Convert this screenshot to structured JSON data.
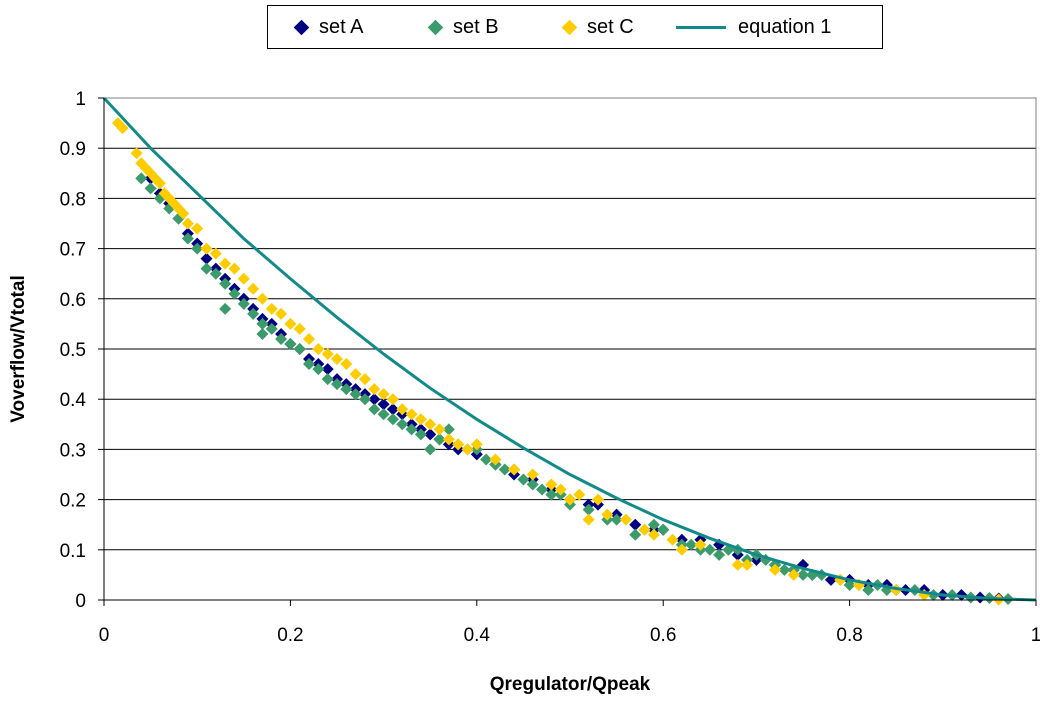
{
  "chart_data": {
    "type": "scatter",
    "title": "",
    "xlabel": "Qregulator/Qpeak",
    "ylabel": "Voverflow/Vtotal",
    "xlim": [
      0,
      1
    ],
    "ylim": [
      0,
      1
    ],
    "x_ticks": [
      "0",
      "0.2",
      "0.4",
      "0.6",
      "0.8",
      "1"
    ],
    "y_ticks": [
      "0",
      "0.1",
      "0.2",
      "0.3",
      "0.4",
      "0.5",
      "0.6",
      "0.7",
      "0.8",
      "0.9",
      "1"
    ],
    "grid": "horizontal",
    "legend_position": "top",
    "series": [
      {
        "name": "set A",
        "kind": "scatter",
        "marker": "diamond",
        "color": "#000080",
        "points": [
          [
            0.05,
            0.84
          ],
          [
            0.06,
            0.81
          ],
          [
            0.07,
            0.79
          ],
          [
            0.08,
            0.76
          ],
          [
            0.09,
            0.73
          ],
          [
            0.1,
            0.71
          ],
          [
            0.11,
            0.68
          ],
          [
            0.12,
            0.66
          ],
          [
            0.13,
            0.64
          ],
          [
            0.14,
            0.62
          ],
          [
            0.15,
            0.6
          ],
          [
            0.16,
            0.58
          ],
          [
            0.17,
            0.56
          ],
          [
            0.18,
            0.55
          ],
          [
            0.19,
            0.53
          ],
          [
            0.2,
            0.51
          ],
          [
            0.21,
            0.5
          ],
          [
            0.22,
            0.48
          ],
          [
            0.23,
            0.47
          ],
          [
            0.24,
            0.46
          ],
          [
            0.25,
            0.44
          ],
          [
            0.26,
            0.43
          ],
          [
            0.27,
            0.42
          ],
          [
            0.28,
            0.41
          ],
          [
            0.29,
            0.4
          ],
          [
            0.3,
            0.39
          ],
          [
            0.31,
            0.38
          ],
          [
            0.32,
            0.37
          ],
          [
            0.33,
            0.35
          ],
          [
            0.34,
            0.34
          ],
          [
            0.35,
            0.33
          ],
          [
            0.36,
            0.32
          ],
          [
            0.37,
            0.31
          ],
          [
            0.38,
            0.3
          ],
          [
            0.4,
            0.29
          ],
          [
            0.42,
            0.27
          ],
          [
            0.44,
            0.25
          ],
          [
            0.46,
            0.24
          ],
          [
            0.48,
            0.22
          ],
          [
            0.5,
            0.2
          ],
          [
            0.52,
            0.19
          ],
          [
            0.53,
            0.19
          ],
          [
            0.55,
            0.17
          ],
          [
            0.57,
            0.15
          ],
          [
            0.59,
            0.14
          ],
          [
            0.6,
            0.14
          ],
          [
            0.62,
            0.12
          ],
          [
            0.64,
            0.12
          ],
          [
            0.66,
            0.11
          ],
          [
            0.68,
            0.09
          ],
          [
            0.7,
            0.08
          ],
          [
            0.72,
            0.07
          ],
          [
            0.74,
            0.06
          ],
          [
            0.75,
            0.07
          ],
          [
            0.76,
            0.05
          ],
          [
            0.78,
            0.04
          ],
          [
            0.8,
            0.04
          ],
          [
            0.82,
            0.03
          ],
          [
            0.84,
            0.03
          ],
          [
            0.86,
            0.02
          ],
          [
            0.88,
            0.02
          ],
          [
            0.9,
            0.01
          ],
          [
            0.92,
            0.01
          ],
          [
            0.94,
            0.005
          ],
          [
            0.96,
            0.003
          ]
        ]
      },
      {
        "name": "set B",
        "kind": "scatter",
        "marker": "diamond",
        "color": "#3C9B6B",
        "points": [
          [
            0.04,
            0.84
          ],
          [
            0.05,
            0.82
          ],
          [
            0.06,
            0.8
          ],
          [
            0.07,
            0.78
          ],
          [
            0.08,
            0.76
          ],
          [
            0.09,
            0.72
          ],
          [
            0.1,
            0.7
          ],
          [
            0.11,
            0.66
          ],
          [
            0.12,
            0.65
          ],
          [
            0.13,
            0.58
          ],
          [
            0.13,
            0.63
          ],
          [
            0.14,
            0.61
          ],
          [
            0.15,
            0.59
          ],
          [
            0.16,
            0.57
          ],
          [
            0.17,
            0.55
          ],
          [
            0.17,
            0.53
          ],
          [
            0.18,
            0.54
          ],
          [
            0.19,
            0.52
          ],
          [
            0.2,
            0.51
          ],
          [
            0.21,
            0.5
          ],
          [
            0.22,
            0.47
          ],
          [
            0.23,
            0.46
          ],
          [
            0.24,
            0.44
          ],
          [
            0.25,
            0.43
          ],
          [
            0.26,
            0.42
          ],
          [
            0.27,
            0.41
          ],
          [
            0.28,
            0.4
          ],
          [
            0.29,
            0.38
          ],
          [
            0.3,
            0.37
          ],
          [
            0.31,
            0.36
          ],
          [
            0.32,
            0.35
          ],
          [
            0.33,
            0.34
          ],
          [
            0.34,
            0.33
          ],
          [
            0.35,
            0.3
          ],
          [
            0.36,
            0.32
          ],
          [
            0.37,
            0.34
          ],
          [
            0.38,
            0.31
          ],
          [
            0.39,
            0.3
          ],
          [
            0.4,
            0.3
          ],
          [
            0.41,
            0.28
          ],
          [
            0.42,
            0.27
          ],
          [
            0.43,
            0.26
          ],
          [
            0.44,
            0.26
          ],
          [
            0.45,
            0.24
          ],
          [
            0.46,
            0.23
          ],
          [
            0.47,
            0.22
          ],
          [
            0.48,
            0.21
          ],
          [
            0.49,
            0.21
          ],
          [
            0.5,
            0.19
          ],
          [
            0.52,
            0.18
          ],
          [
            0.54,
            0.16
          ],
          [
            0.55,
            0.16
          ],
          [
            0.57,
            0.13
          ],
          [
            0.58,
            0.14
          ],
          [
            0.59,
            0.15
          ],
          [
            0.6,
            0.14
          ],
          [
            0.62,
            0.11
          ],
          [
            0.63,
            0.11
          ],
          [
            0.64,
            0.1
          ],
          [
            0.65,
            0.1
          ],
          [
            0.66,
            0.09
          ],
          [
            0.67,
            0.1
          ],
          [
            0.68,
            0.1
          ],
          [
            0.69,
            0.08
          ],
          [
            0.7,
            0.09
          ],
          [
            0.71,
            0.08
          ],
          [
            0.72,
            0.07
          ],
          [
            0.73,
            0.06
          ],
          [
            0.74,
            0.06
          ],
          [
            0.75,
            0.05
          ],
          [
            0.76,
            0.05
          ],
          [
            0.77,
            0.05
          ],
          [
            0.79,
            0.04
          ],
          [
            0.8,
            0.03
          ],
          [
            0.81,
            0.03
          ],
          [
            0.82,
            0.02
          ],
          [
            0.83,
            0.03
          ],
          [
            0.84,
            0.02
          ],
          [
            0.85,
            0.02
          ],
          [
            0.87,
            0.02
          ],
          [
            0.89,
            0.01
          ],
          [
            0.91,
            0.01
          ],
          [
            0.93,
            0.005
          ],
          [
            0.95,
            0.004
          ],
          [
            0.97,
            0.002
          ]
        ]
      },
      {
        "name": "set C",
        "kind": "scatter",
        "marker": "diamond",
        "color": "#FFCC00",
        "points": [
          [
            0.015,
            0.95
          ],
          [
            0.02,
            0.94
          ],
          [
            0.035,
            0.89
          ],
          [
            0.04,
            0.87
          ],
          [
            0.045,
            0.86
          ],
          [
            0.05,
            0.85
          ],
          [
            0.055,
            0.84
          ],
          [
            0.06,
            0.83
          ],
          [
            0.065,
            0.81
          ],
          [
            0.07,
            0.8
          ],
          [
            0.075,
            0.79
          ],
          [
            0.08,
            0.78
          ],
          [
            0.085,
            0.77
          ],
          [
            0.09,
            0.75
          ],
          [
            0.1,
            0.74
          ],
          [
            0.11,
            0.7
          ],
          [
            0.12,
            0.69
          ],
          [
            0.13,
            0.67
          ],
          [
            0.14,
            0.66
          ],
          [
            0.15,
            0.64
          ],
          [
            0.16,
            0.62
          ],
          [
            0.17,
            0.6
          ],
          [
            0.18,
            0.58
          ],
          [
            0.19,
            0.57
          ],
          [
            0.2,
            0.55
          ],
          [
            0.21,
            0.54
          ],
          [
            0.22,
            0.52
          ],
          [
            0.23,
            0.5
          ],
          [
            0.24,
            0.49
          ],
          [
            0.25,
            0.48
          ],
          [
            0.26,
            0.47
          ],
          [
            0.27,
            0.45
          ],
          [
            0.28,
            0.44
          ],
          [
            0.29,
            0.42
          ],
          [
            0.3,
            0.41
          ],
          [
            0.31,
            0.4
          ],
          [
            0.32,
            0.38
          ],
          [
            0.33,
            0.37
          ],
          [
            0.34,
            0.36
          ],
          [
            0.35,
            0.35
          ],
          [
            0.36,
            0.34
          ],
          [
            0.37,
            0.32
          ],
          [
            0.38,
            0.31
          ],
          [
            0.39,
            0.3
          ],
          [
            0.4,
            0.31
          ],
          [
            0.42,
            0.28
          ],
          [
            0.44,
            0.26
          ],
          [
            0.46,
            0.25
          ],
          [
            0.48,
            0.23
          ],
          [
            0.49,
            0.22
          ],
          [
            0.5,
            0.2
          ],
          [
            0.51,
            0.21
          ],
          [
            0.52,
            0.16
          ],
          [
            0.53,
            0.2
          ],
          [
            0.54,
            0.17
          ],
          [
            0.56,
            0.16
          ],
          [
            0.58,
            0.14
          ],
          [
            0.59,
            0.13
          ],
          [
            0.61,
            0.12
          ],
          [
            0.62,
            0.1
          ],
          [
            0.64,
            0.11
          ],
          [
            0.68,
            0.07
          ],
          [
            0.69,
            0.07
          ],
          [
            0.72,
            0.06
          ],
          [
            0.74,
            0.05
          ],
          [
            0.79,
            0.04
          ],
          [
            0.81,
            0.03
          ],
          [
            0.85,
            0.02
          ],
          [
            0.88,
            0.01
          ],
          [
            0.96,
            0.001
          ]
        ]
      },
      {
        "name": "equation 1",
        "kind": "line",
        "color": "#138A8A",
        "points": [
          [
            0,
            1
          ],
          [
            0.05,
            0.9
          ],
          [
            0.1,
            0.81
          ],
          [
            0.15,
            0.72
          ],
          [
            0.2,
            0.64
          ],
          [
            0.25,
            0.563
          ],
          [
            0.3,
            0.49
          ],
          [
            0.35,
            0.422
          ],
          [
            0.4,
            0.36
          ],
          [
            0.45,
            0.303
          ],
          [
            0.5,
            0.25
          ],
          [
            0.55,
            0.203
          ],
          [
            0.6,
            0.16
          ],
          [
            0.65,
            0.123
          ],
          [
            0.7,
            0.09
          ],
          [
            0.75,
            0.063
          ],
          [
            0.8,
            0.04
          ],
          [
            0.85,
            0.023
          ],
          [
            0.9,
            0.01
          ],
          [
            0.95,
            0.003
          ],
          [
            1,
            0
          ]
        ]
      }
    ]
  }
}
